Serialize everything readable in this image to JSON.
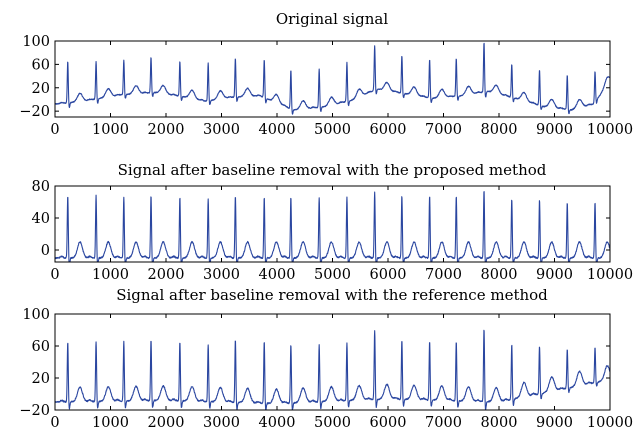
{
  "colors": {
    "signal": "#2a46a0",
    "axes": "#000000",
    "background": "#ffffff"
  },
  "chart_data": [
    {
      "type": "line",
      "title": "Original signal",
      "xlabel": "",
      "ylabel": "",
      "xlim": [
        0,
        10000
      ],
      "ylim": [
        -30,
        100
      ],
      "xticks": [
        0,
        1000,
        2000,
        3000,
        4000,
        5000,
        6000,
        7000,
        8000,
        9000,
        10000
      ],
      "yticks": [
        -20,
        20,
        60,
        100
      ],
      "ytick_labels": [
        "−20",
        "20",
        "60",
        "100"
      ],
      "grid": false,
      "series": [
        {
          "baseline": [
            [
              0,
              -8
            ],
            [
              500,
              -3
            ],
            [
              1200,
              8
            ],
            [
              1800,
              12
            ],
            [
              2300,
              5
            ],
            [
              2700,
              -3
            ],
            [
              3200,
              4
            ],
            [
              3700,
              6
            ],
            [
              4300,
              -18
            ],
            [
              4900,
              -12
            ],
            [
              5400,
              0
            ],
            [
              5800,
              18
            ],
            [
              6300,
              10
            ],
            [
              6800,
              2
            ],
            [
              7300,
              6
            ],
            [
              7800,
              14
            ],
            [
              8300,
              2
            ],
            [
              8800,
              -12
            ],
            [
              9300,
              -18
            ],
            [
              9700,
              -8
            ],
            [
              10000,
              30
            ]
          ],
          "r_peaks": [
            [
              230,
              65
            ],
            [
              740,
              65
            ],
            [
              1240,
              68
            ],
            [
              1730,
              72
            ],
            [
              2250,
              65
            ],
            [
              2760,
              62
            ],
            [
              3250,
              70
            ],
            [
              3770,
              68
            ],
            [
              4250,
              50
            ],
            [
              4760,
              52
            ],
            [
              5260,
              63
            ],
            [
              5760,
              92
            ],
            [
              6250,
              75
            ],
            [
              6750,
              68
            ],
            [
              7230,
              70
            ],
            [
              7730,
              98
            ],
            [
              8230,
              60
            ],
            [
              8730,
              50
            ],
            [
              9230,
              42
            ],
            [
              9730,
              48
            ]
          ],
          "t_wave_height": 14
        }
      ]
    },
    {
      "type": "line",
      "title": "Signal after baseline removal with the proposed method",
      "xlabel": "",
      "ylabel": "",
      "xlim": [
        0,
        10000
      ],
      "ylim": [
        -15,
        80
      ],
      "xticks": [
        0,
        1000,
        2000,
        3000,
        4000,
        5000,
        6000,
        7000,
        8000,
        9000,
        10000
      ],
      "yticks": [
        0,
        40,
        80
      ],
      "ytick_labels": [
        "0",
        "40",
        "80"
      ],
      "grid": false,
      "series": [
        {
          "baseline": [
            [
              0,
              -10
            ],
            [
              10000,
              -10
            ]
          ],
          "r_peaks": [
            [
              230,
              68
            ],
            [
              740,
              68
            ],
            [
              1240,
              66
            ],
            [
              1730,
              68
            ],
            [
              2250,
              66
            ],
            [
              2760,
              64
            ],
            [
              3250,
              68
            ],
            [
              3770,
              66
            ],
            [
              4250,
              66
            ],
            [
              4760,
              66
            ],
            [
              5260,
              66
            ],
            [
              5760,
              72
            ],
            [
              6250,
              68
            ],
            [
              6750,
              68
            ],
            [
              7230,
              68
            ],
            [
              7730,
              75
            ],
            [
              8230,
              64
            ],
            [
              8730,
              63
            ],
            [
              9230,
              60
            ],
            [
              9730,
              60
            ]
          ],
          "t_wave_height": 20
        }
      ]
    },
    {
      "type": "line",
      "title": "Signal after baseline removal with the reference method",
      "xlabel": "",
      "ylabel": "",
      "xlim": [
        0,
        10000
      ],
      "ylim": [
        -20,
        100
      ],
      "xticks": [
        0,
        1000,
        2000,
        3000,
        4000,
        5000,
        6000,
        7000,
        8000,
        9000,
        10000
      ],
      "yticks": [
        -20,
        20,
        60,
        100
      ],
      "ytick_labels": [
        "−20",
        "20",
        "60",
        "100"
      ],
      "grid": false,
      "series": [
        {
          "baseline": [
            [
              0,
              -10
            ],
            [
              2000,
              -8
            ],
            [
              4000,
              -12
            ],
            [
              6000,
              -6
            ],
            [
              8000,
              -10
            ],
            [
              10000,
              18
            ]
          ],
          "r_peaks": [
            [
              230,
              65
            ],
            [
              740,
              66
            ],
            [
              1240,
              66
            ],
            [
              1730,
              68
            ],
            [
              2250,
              66
            ],
            [
              2760,
              62
            ],
            [
              3250,
              68
            ],
            [
              3770,
              66
            ],
            [
              4250,
              62
            ],
            [
              4760,
              62
            ],
            [
              5260,
              64
            ],
            [
              5760,
              80
            ],
            [
              6250,
              68
            ],
            [
              6750,
              66
            ],
            [
              7230,
              66
            ],
            [
              7730,
              82
            ],
            [
              8230,
              62
            ],
            [
              8730,
              60
            ],
            [
              9230,
              56
            ],
            [
              9730,
              58
            ]
          ],
          "t_wave_height": 18
        }
      ]
    }
  ]
}
